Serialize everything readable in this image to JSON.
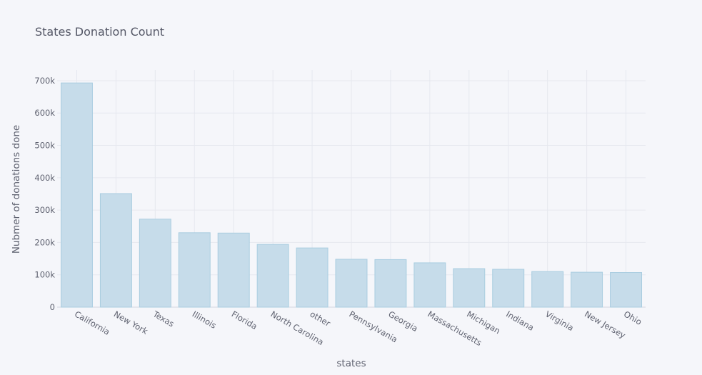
{
  "chart_data": {
    "type": "bar",
    "title": "States Donation Count",
    "x_label": "states",
    "y_label": "Nubmer of donations done",
    "categories": [
      "California",
      "New York",
      "Texas",
      "Illinois",
      "Florida",
      "North Carolina",
      "other",
      "Pennsylvania",
      "Georgia",
      "Massachusetts",
      "Michigan",
      "Indiana",
      "Virginia",
      "New Jersey",
      "Ohio"
    ],
    "values": [
      693000,
      351000,
      272000,
      230000,
      229000,
      194000,
      183000,
      148000,
      147000,
      137000,
      119000,
      117000,
      110000,
      108000,
      107000
    ],
    "color": "#c6dcea",
    "ylim": [
      0,
      733000
    ],
    "yticks": [
      0,
      {
        "value": 100000,
        "label": "100k"
      },
      {
        "value": 200000,
        "label": "200k"
      },
      {
        "value": 300000,
        "label": "300k"
      },
      {
        "value": 400000,
        "label": "400k"
      },
      {
        "value": 500000,
        "label": "500k"
      },
      {
        "value": 600000,
        "label": "600k"
      },
      {
        "value": 700000,
        "label": "700k"
      }
    ],
    "grid": true
  }
}
